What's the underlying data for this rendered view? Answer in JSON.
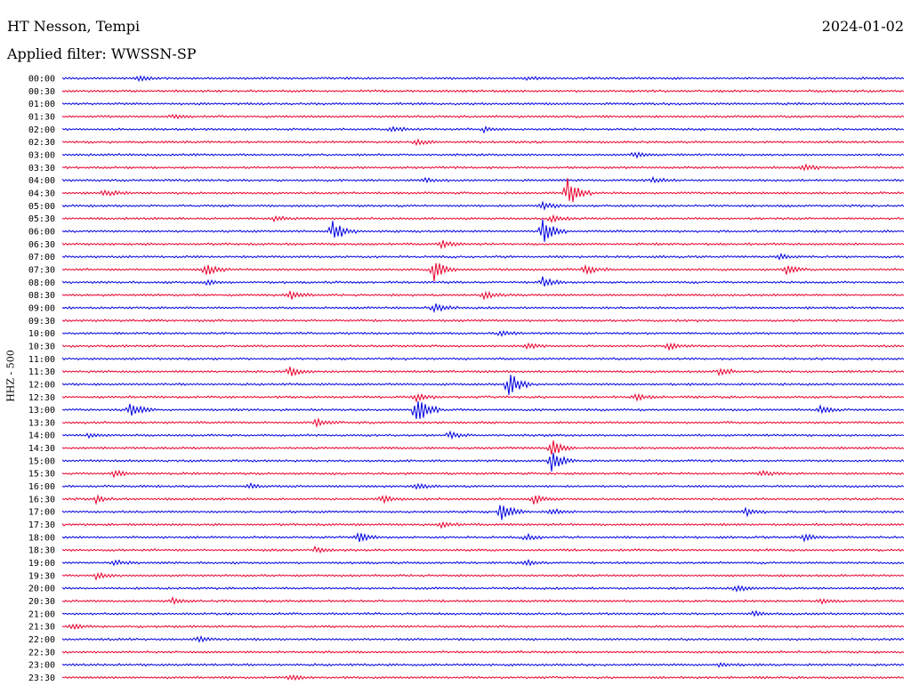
{
  "header": {
    "station": "HT Nesson, Tempi",
    "date": "2024-01-02",
    "filter": "Applied filter: WWSSN-SP"
  },
  "chart_data": {
    "type": "line",
    "title": "HT Nesson, Tempi",
    "subtitle": "Applied filter: WWSSN-SP",
    "ylabel": "HHZ - 500",
    "date": "2024-01-02",
    "trace_colors": [
      "#0000e0",
      "#e8002d"
    ],
    "rows": [
      {
        "time": "00:00",
        "events": [
          {
            "t": 0.09,
            "a": 3
          },
          {
            "t": 0.55,
            "a": 2
          }
        ]
      },
      {
        "time": "00:30",
        "events": []
      },
      {
        "time": "01:00",
        "events": []
      },
      {
        "time": "01:30",
        "events": [
          {
            "t": 0.13,
            "a": 2
          }
        ]
      },
      {
        "time": "02:00",
        "events": [
          {
            "t": 0.39,
            "a": 3
          },
          {
            "t": 0.5,
            "a": 3
          }
        ]
      },
      {
        "time": "02:30",
        "events": [
          {
            "t": 0.42,
            "a": 3
          }
        ]
      },
      {
        "time": "03:00",
        "events": [
          {
            "t": 0.68,
            "a": 3
          }
        ]
      },
      {
        "time": "03:30",
        "events": [
          {
            "t": 0.88,
            "a": 4
          }
        ]
      },
      {
        "time": "04:00",
        "events": [
          {
            "t": 0.43,
            "a": 2
          },
          {
            "t": 0.7,
            "a": 3
          }
        ]
      },
      {
        "time": "04:30",
        "events": [
          {
            "t": 0.05,
            "a": 4
          },
          {
            "t": 0.6,
            "a": 18
          }
        ]
      },
      {
        "time": "05:00",
        "events": [
          {
            "t": 0.57,
            "a": 5
          }
        ]
      },
      {
        "time": "05:30",
        "events": [
          {
            "t": 0.25,
            "a": 4
          },
          {
            "t": 0.58,
            "a": 4
          }
        ]
      },
      {
        "time": "06:00",
        "events": [
          {
            "t": 0.32,
            "a": 14
          },
          {
            "t": 0.57,
            "a": 16
          }
        ]
      },
      {
        "time": "06:30",
        "events": [
          {
            "t": 0.45,
            "a": 4
          }
        ]
      },
      {
        "time": "07:00",
        "events": [
          {
            "t": 0.85,
            "a": 3
          }
        ]
      },
      {
        "time": "07:30",
        "events": [
          {
            "t": 0.17,
            "a": 7
          },
          {
            "t": 0.44,
            "a": 15
          },
          {
            "t": 0.62,
            "a": 6
          },
          {
            "t": 0.86,
            "a": 5
          }
        ]
      },
      {
        "time": "08:00",
        "events": [
          {
            "t": 0.17,
            "a": 3
          },
          {
            "t": 0.57,
            "a": 6
          }
        ]
      },
      {
        "time": "08:30",
        "events": [
          {
            "t": 0.27,
            "a": 5
          },
          {
            "t": 0.5,
            "a": 4
          }
        ]
      },
      {
        "time": "09:00",
        "events": [
          {
            "t": 0.44,
            "a": 6
          }
        ]
      },
      {
        "time": "09:30",
        "events": []
      },
      {
        "time": "10:00",
        "events": [
          {
            "t": 0.52,
            "a": 3
          }
        ]
      },
      {
        "time": "10:30",
        "events": [
          {
            "t": 0.55,
            "a": 4
          },
          {
            "t": 0.72,
            "a": 4
          }
        ]
      },
      {
        "time": "11:00",
        "events": []
      },
      {
        "time": "11:30",
        "events": [
          {
            "t": 0.27,
            "a": 5
          },
          {
            "t": 0.78,
            "a": 5
          }
        ]
      },
      {
        "time": "12:00",
        "events": [
          {
            "t": 0.53,
            "a": 16
          }
        ]
      },
      {
        "time": "12:30",
        "events": [
          {
            "t": 0.42,
            "a": 5
          },
          {
            "t": 0.68,
            "a": 4
          }
        ]
      },
      {
        "time": "13:00",
        "events": [
          {
            "t": 0.08,
            "a": 9
          },
          {
            "t": 0.42,
            "a": 20
          },
          {
            "t": 0.9,
            "a": 4
          }
        ]
      },
      {
        "time": "13:30",
        "events": [
          {
            "t": 0.3,
            "a": 4
          }
        ]
      },
      {
        "time": "14:00",
        "events": [
          {
            "t": 0.03,
            "a": 3
          },
          {
            "t": 0.46,
            "a": 4
          }
        ]
      },
      {
        "time": "14:30",
        "events": [
          {
            "t": 0.58,
            "a": 11
          }
        ]
      },
      {
        "time": "15:00",
        "events": [
          {
            "t": 0.58,
            "a": 13
          }
        ]
      },
      {
        "time": "15:30",
        "events": [
          {
            "t": 0.06,
            "a": 4
          },
          {
            "t": 0.83,
            "a": 3
          }
        ]
      },
      {
        "time": "16:00",
        "events": [
          {
            "t": 0.22,
            "a": 3
          },
          {
            "t": 0.42,
            "a": 3
          }
        ]
      },
      {
        "time": "16:30",
        "events": [
          {
            "t": 0.04,
            "a": 4
          },
          {
            "t": 0.38,
            "a": 4
          },
          {
            "t": 0.56,
            "a": 5
          }
        ]
      },
      {
        "time": "17:00",
        "events": [
          {
            "t": 0.52,
            "a": 12
          },
          {
            "t": 0.58,
            "a": 4
          },
          {
            "t": 0.81,
            "a": 5
          }
        ]
      },
      {
        "time": "17:30",
        "events": [
          {
            "t": 0.45,
            "a": 3
          }
        ]
      },
      {
        "time": "18:00",
        "events": [
          {
            "t": 0.35,
            "a": 6
          },
          {
            "t": 0.55,
            "a": 4
          },
          {
            "t": 0.88,
            "a": 4
          }
        ]
      },
      {
        "time": "18:30",
        "events": [
          {
            "t": 0.3,
            "a": 3
          }
        ]
      },
      {
        "time": "19:00",
        "events": [
          {
            "t": 0.06,
            "a": 3
          },
          {
            "t": 0.55,
            "a": 3
          }
        ]
      },
      {
        "time": "19:30",
        "events": [
          {
            "t": 0.04,
            "a": 4
          }
        ]
      },
      {
        "time": "20:00",
        "events": [
          {
            "t": 0.8,
            "a": 4
          }
        ]
      },
      {
        "time": "20:30",
        "events": [
          {
            "t": 0.13,
            "a": 3
          },
          {
            "t": 0.9,
            "a": 3
          }
        ]
      },
      {
        "time": "21:00",
        "events": [
          {
            "t": 0.82,
            "a": 3
          }
        ]
      },
      {
        "time": "21:30",
        "events": [
          {
            "t": 0.01,
            "a": 3
          }
        ]
      },
      {
        "time": "22:00",
        "events": [
          {
            "t": 0.16,
            "a": 3
          }
        ]
      },
      {
        "time": "22:30",
        "events": []
      },
      {
        "time": "23:00",
        "events": [
          {
            "t": 0.78,
            "a": 2
          }
        ]
      },
      {
        "time": "23:30",
        "events": [
          {
            "t": 0.27,
            "a": 3
          }
        ]
      }
    ]
  }
}
